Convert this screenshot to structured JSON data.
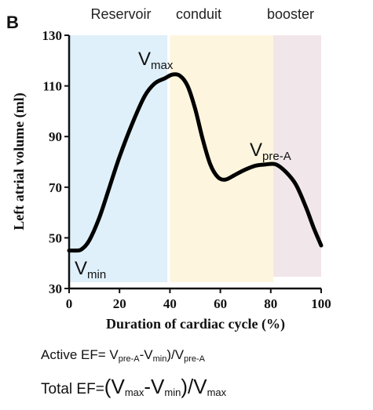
{
  "panel_label": "B",
  "chart_data": {
    "type": "line",
    "phases": [
      {
        "label": "Reservoir",
        "from": 0,
        "to": 39,
        "color": "#dff0fa"
      },
      {
        "label": "conduit",
        "from": 40,
        "to": 81,
        "color": "#fdf5de"
      },
      {
        "label": "booster",
        "from": 81,
        "to": 100,
        "color": "#f1e6e9"
      }
    ],
    "xlabel": "Duration of cardiac cycle (%)",
    "ylabel": "Left atrial volume (ml)",
    "xlim": [
      0,
      100
    ],
    "ylim": [
      30,
      130
    ],
    "xticks": [
      0,
      20,
      40,
      60,
      80,
      100
    ],
    "yticks": [
      30,
      50,
      70,
      90,
      110,
      130
    ],
    "grid": false,
    "series": [
      {
        "color": "#000000",
        "x": [
          0,
          3,
          5,
          8,
          12,
          16,
          20,
          25,
          30,
          34,
          38,
          41,
          44,
          47,
          50,
          53,
          56,
          59,
          62,
          66,
          70,
          74,
          78,
          82,
          86,
          90,
          94,
          97,
          100
        ],
        "y": [
          45,
          45,
          45.5,
          49,
          58,
          70,
          82,
          95,
          106,
          111,
          113,
          114.5,
          114,
          110,
          101,
          89,
          79,
          74,
          73,
          75,
          77,
          78.5,
          79,
          79,
          76,
          71,
          62,
          54,
          47
        ]
      }
    ],
    "annotations": [
      {
        "id": "max",
        "base": "V",
        "sub": "max",
        "x": 42,
        "y": 114.5
      },
      {
        "id": "prea",
        "base": "V",
        "sub": "pre-A",
        "x": 78,
        "y": 79
      },
      {
        "id": "min",
        "base": "V",
        "sub": "min",
        "x": 3,
        "y": 45
      }
    ]
  },
  "formulas": {
    "active": {
      "prefix": "Active EF= V",
      "s1": "pre-A",
      "mid1": "-V",
      "s2": "min",
      "mid2": ")/V",
      "s3": "pre-A"
    },
    "total": {
      "prefix": "Total EF=",
      "paren_open": "(",
      "v1": "V",
      "s1": "max",
      "mid1": "-V",
      "s2": "min",
      "paren_close": ")",
      "slash": "/V",
      "s3": "max"
    }
  }
}
